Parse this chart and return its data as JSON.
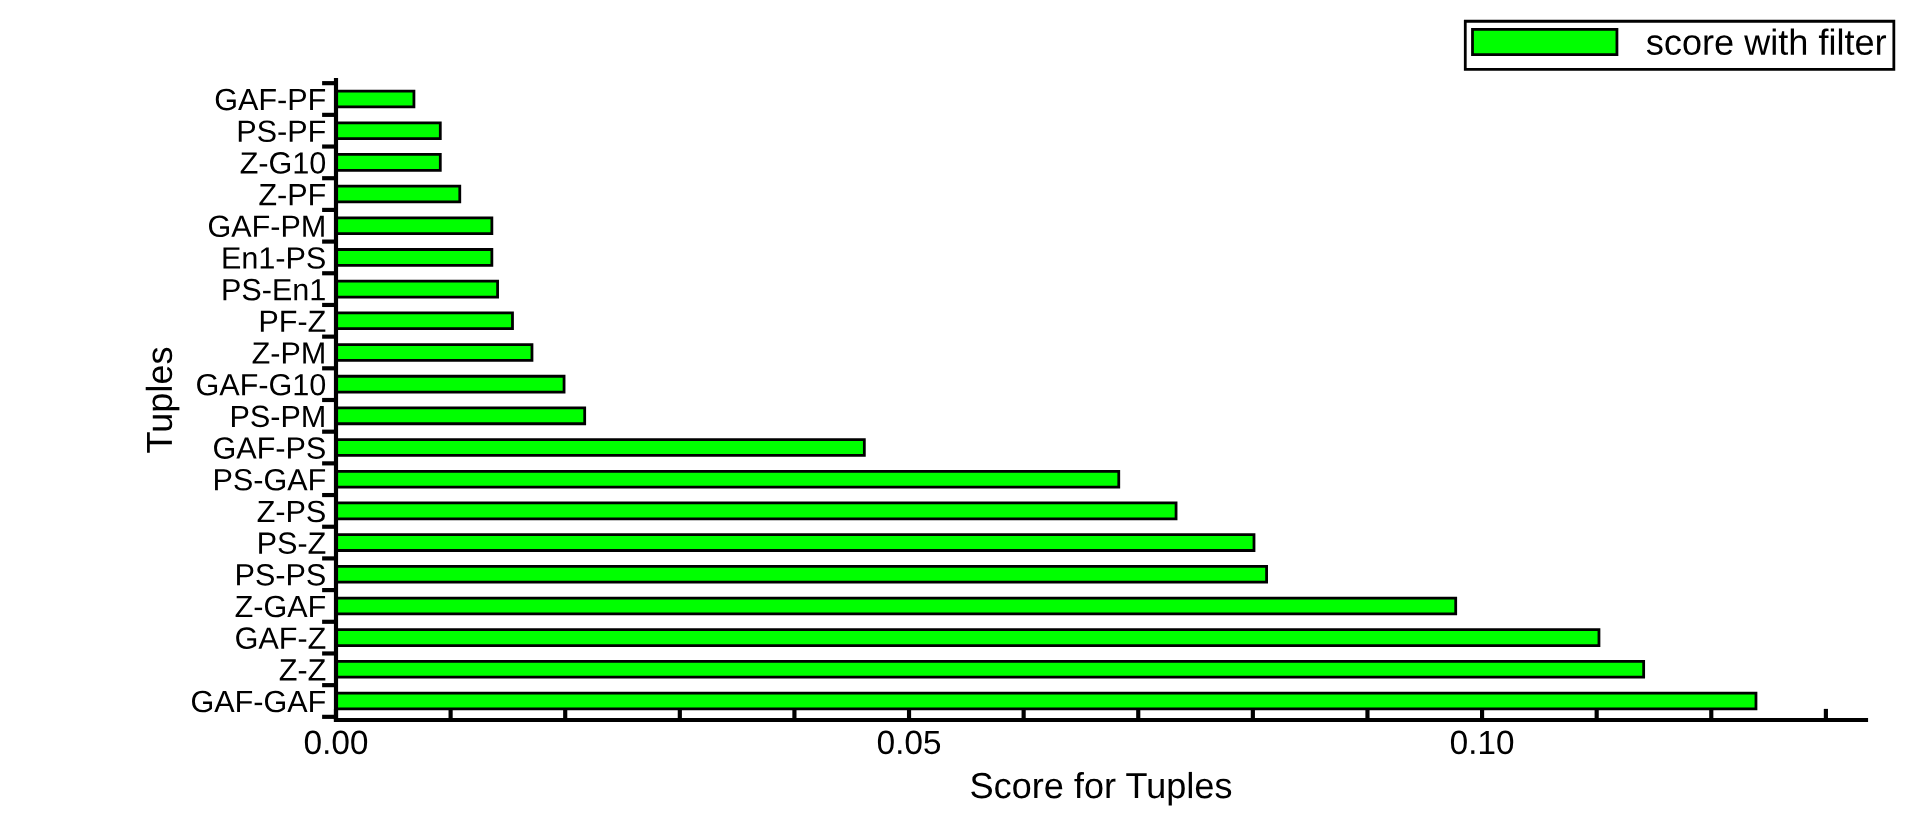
{
  "chart_data": {
    "type": "bar",
    "orientation": "horizontal",
    "xlabel": "Score for Tuples",
    "ylabel": "Tuples",
    "categories": [
      "GAF-PF",
      "PS-PF",
      "Z-G10",
      "Z-PF",
      "GAF-PM",
      "En1-PS",
      "PS-En1",
      "PF-Z",
      "Z-PM",
      "GAF-G10",
      "PS-PM",
      "GAF-PS",
      "PS-GAF",
      "Z-PS",
      "PS-Z",
      "PS-PS",
      "Z-GAF",
      "GAF-Z",
      "Z-Z",
      "GAF-GAF"
    ],
    "series": [
      {
        "name": "score with filter",
        "color": "#00ff00",
        "values": [
          0.0068,
          0.0091,
          0.0091,
          0.0108,
          0.0136,
          0.0136,
          0.0141,
          0.0154,
          0.0171,
          0.0199,
          0.0217,
          0.0461,
          0.0683,
          0.0733,
          0.0801,
          0.0812,
          0.0977,
          0.1102,
          0.1141,
          0.1239
        ]
      }
    ],
    "xlim": [
      0,
      0.1335
    ],
    "xticks": [
      {
        "value": 0,
        "label": "0.00"
      },
      {
        "value": 0.01,
        "label": null
      },
      {
        "value": 0.02,
        "label": null
      },
      {
        "value": 0.03,
        "label": null
      },
      {
        "value": 0.04,
        "label": null
      },
      {
        "value": 0.05,
        "label": "0.05"
      },
      {
        "value": 0.06,
        "label": null
      },
      {
        "value": 0.07,
        "label": null
      },
      {
        "value": 0.08,
        "label": null
      },
      {
        "value": 0.09,
        "label": null
      },
      {
        "value": 0.1,
        "label": "0.10"
      },
      {
        "value": 0.11,
        "label": null
      },
      {
        "value": 0.12,
        "label": null
      },
      {
        "value": 0.13,
        "label": null
      }
    ],
    "legend": "top right",
    "grid": false
  }
}
